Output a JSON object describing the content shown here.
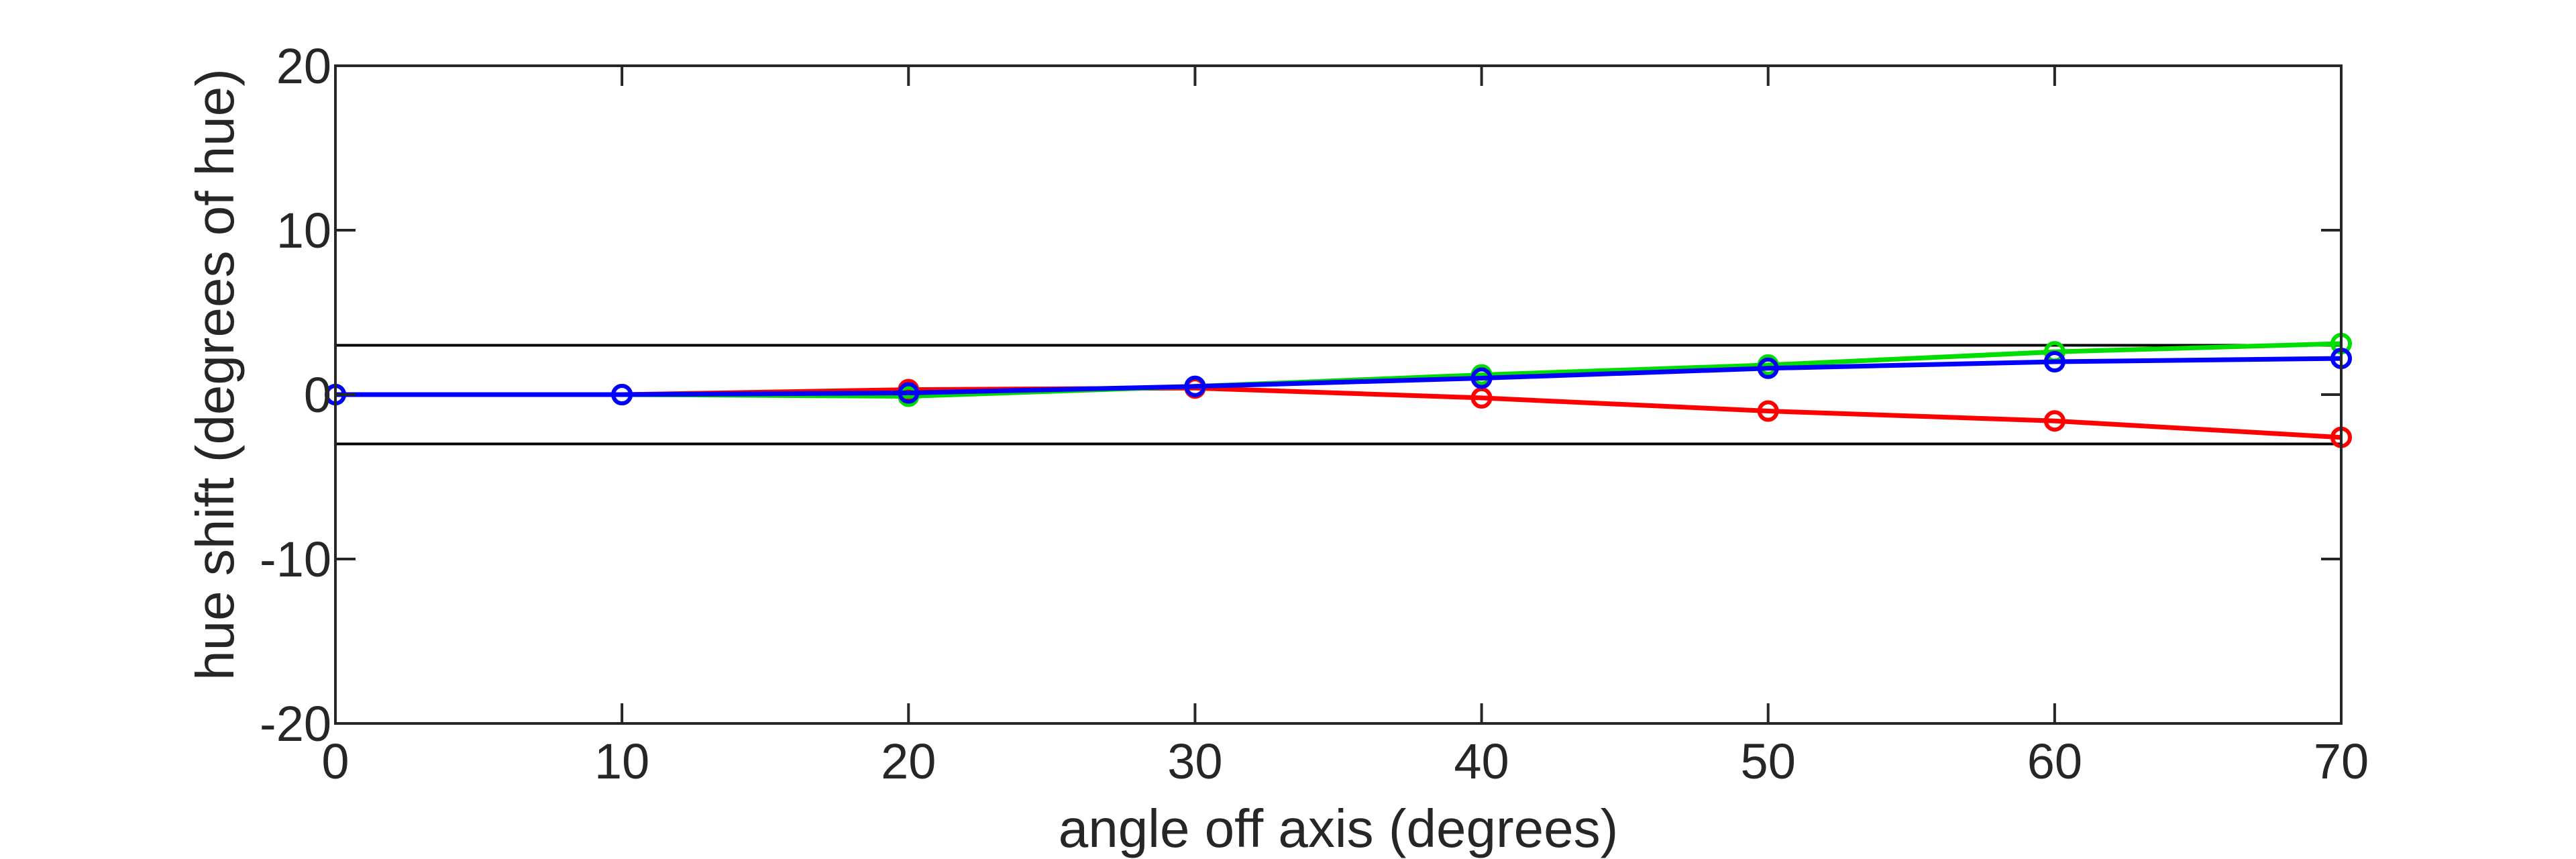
{
  "chart_data": {
    "type": "line",
    "xlabel": "angle off axis (degrees)",
    "ylabel": "hue shift (degrees of hue)",
    "xlim": [
      0,
      70
    ],
    "ylim": [
      -20,
      20
    ],
    "xticks": [
      0,
      10,
      20,
      30,
      40,
      50,
      60,
      70
    ],
    "yticks": [
      -20,
      -10,
      0,
      10,
      20
    ],
    "grid": false,
    "reference_lines": [
      3,
      -3
    ],
    "x": [
      0,
      10,
      20,
      30,
      40,
      50,
      60,
      70
    ],
    "series": [
      {
        "color": "#ff0000",
        "marker": "circle",
        "values": [
          0,
          0,
          0.3,
          0.4,
          -0.2,
          -1.0,
          -1.6,
          -2.6
        ]
      },
      {
        "color": "#00dd00",
        "marker": "circle",
        "values": [
          0,
          0,
          -0.1,
          0.5,
          1.2,
          1.8,
          2.6,
          3.1
        ]
      },
      {
        "color": "#0000ff",
        "marker": "circle",
        "values": [
          0,
          0,
          0.1,
          0.5,
          1.0,
          1.6,
          2.0,
          2.2
        ]
      }
    ],
    "colors": {
      "axes": "#262626",
      "reference_lines": "#000000"
    }
  }
}
